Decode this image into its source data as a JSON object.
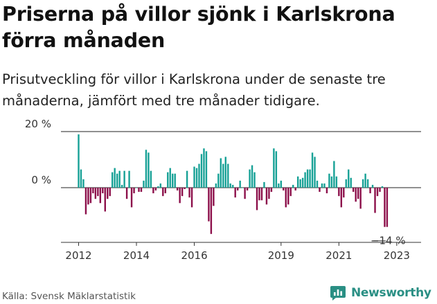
{
  "title": "Priserna på villor sjönk i Karlskrona förra månaden",
  "subtitle": "Prisutveckling för villor i Karlskrona under de senaste tre månaderna, jämfört med tre månader tidigare.",
  "source": "Källa: Svensk Mäklarstatistik",
  "brand": {
    "name": "Newsworthy",
    "icon": "newsworthy-logo-icon"
  },
  "colors": {
    "positive": "#17a196",
    "negative": "#8c0f4a",
    "axis": "#333333"
  },
  "chart_data": {
    "type": "bar",
    "x_start": "2012-01",
    "x_end": "2023-04",
    "ylim": [
      -18,
      22
    ],
    "y_ticks": [
      {
        "value": 20,
        "label": "20 %"
      },
      {
        "value": 0,
        "label": "0 %"
      }
    ],
    "x_ticks": [
      {
        "year": 2012,
        "label": "2012"
      },
      {
        "year": 2014,
        "label": "2014"
      },
      {
        "year": 2016,
        "label": "2016"
      },
      {
        "year": 2019,
        "label": "2019"
      },
      {
        "year": 2021,
        "label": "2021"
      },
      {
        "year": 2023,
        "label": "2023"
      }
    ],
    "last_value_label": "−14 %",
    "unit": "%",
    "values": [
      19,
      6.5,
      3,
      -9.5,
      -6,
      -5.5,
      -2,
      -4,
      -3,
      -5.5,
      -2,
      -8.5,
      -4,
      -3,
      5.5,
      7,
      5,
      6,
      1,
      6,
      -4,
      6,
      -7,
      -2,
      0,
      -1.5,
      -1.5,
      2.5,
      13.5,
      12.5,
      6,
      -2,
      -1,
      0.5,
      1.5,
      -3,
      -2,
      5.5,
      7,
      5,
      5,
      -1,
      -5.5,
      -3,
      -0.5,
      6,
      -3.5,
      -7,
      7.5,
      7,
      8.5,
      12,
      14,
      13,
      -12,
      -16.5,
      -6.5,
      1.5,
      5,
      10.5,
      8.5,
      11,
      8.5,
      1.5,
      1,
      -3.5,
      -1,
      2.5,
      0,
      -4,
      -1,
      6.5,
      8,
      5.5,
      -8,
      -4.5,
      -4.5,
      2,
      -6,
      -4,
      -1.5,
      14,
      13,
      1.5,
      2.5,
      -1,
      -7,
      -6,
      -3,
      1,
      -1,
      4,
      3,
      3.5,
      5.5,
      6.5,
      6.5,
      12.5,
      11,
      2.5,
      -1.5,
      1.5,
      1.5,
      -2,
      5,
      4,
      9.5,
      4,
      -3,
      -7,
      -3.5,
      3,
      6.5,
      3.5,
      -1.5,
      -5,
      -4,
      -7.5,
      3,
      5,
      3,
      -2,
      1,
      -9,
      -3,
      -1.5,
      0.5,
      -14,
      -14
    ]
  }
}
